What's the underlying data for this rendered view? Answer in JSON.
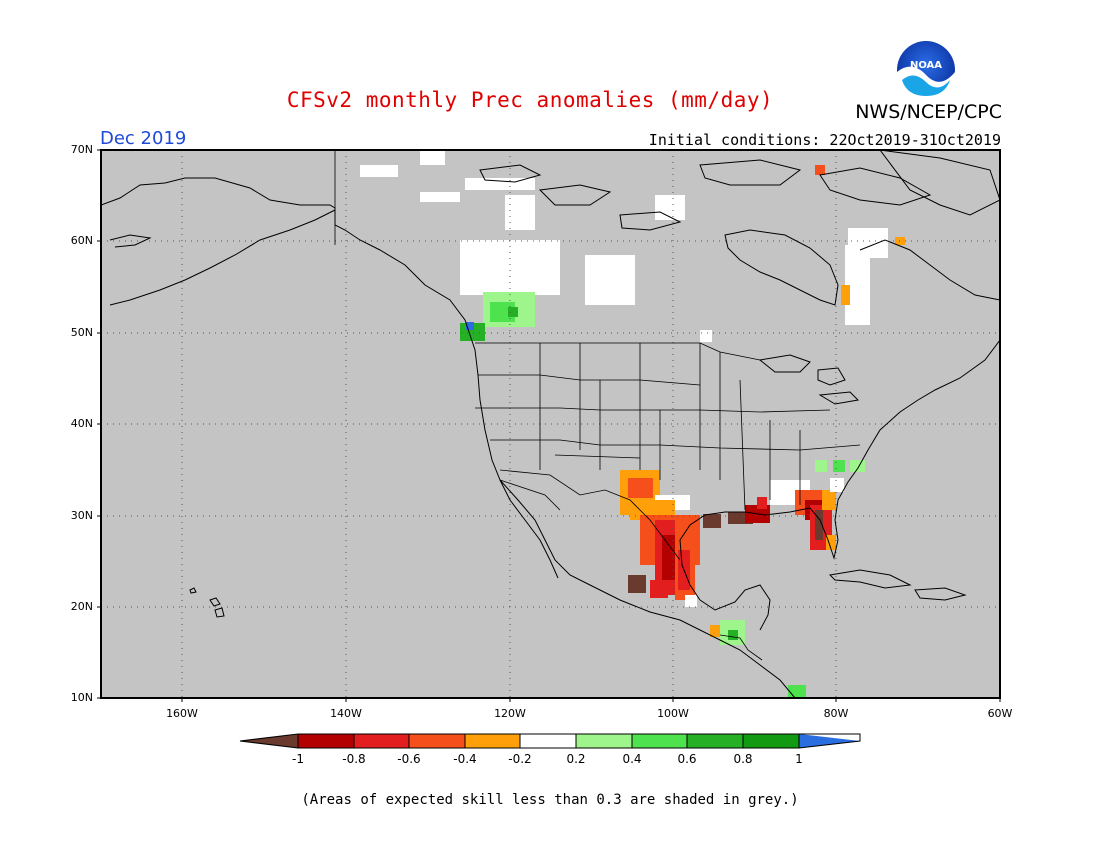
{
  "title": "CFSv2 monthly Prec anomalies (mm/day)",
  "agency": "NWS/NCEP/CPC",
  "logo_text": "NOAA",
  "valid_month": "Dec 2019",
  "initial_conditions": "Initial conditions: 22Oct2019-31Oct2019",
  "footnote": "(Areas of expected skill less than 0.3 are shaded in grey.)",
  "map": {
    "projection": "cylindrical equidistant",
    "lon_range": [
      -170,
      -60
    ],
    "lat_range": [
      10,
      70
    ],
    "lat_labels": [
      "70N",
      "60N",
      "50N",
      "40N",
      "30N",
      "20N",
      "10N"
    ],
    "lon_labels": [
      "160W",
      "140W",
      "120W",
      "100W",
      "80W",
      "60W"
    ],
    "background": "grey (low skill)"
  },
  "colorbar": {
    "tick_labels": [
      "-1",
      "-0.8",
      "-0.6",
      "-0.4",
      "-0.2",
      "0.2",
      "0.4",
      "0.6",
      "0.8",
      "1"
    ],
    "colors": [
      "#6b3a2e",
      "#b30000",
      "#e21e1e",
      "#f5501b",
      "#ffa00a",
      "#ffffff",
      "#9ef58c",
      "#4ee24e",
      "#26b026",
      "#129a12",
      "#2a6ee0"
    ]
  },
  "colors": {
    "grey": "#c4c4c4",
    "coast": "#000000",
    "title": "#e00000",
    "month": "#1f49d8"
  }
}
